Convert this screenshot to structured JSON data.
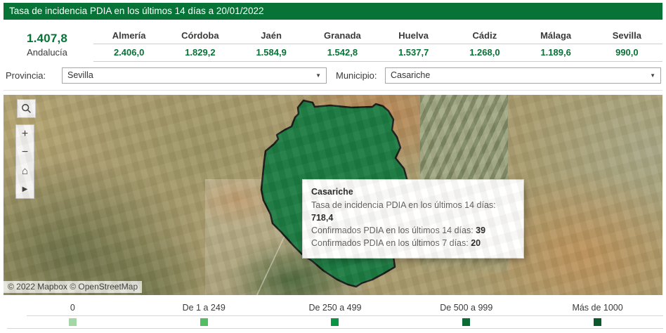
{
  "title_bar": {
    "text": "Tasa de incidencia PDIA en los últimos 14 días a 20/01/2022"
  },
  "summary": {
    "value": "1.407,8",
    "region": "Andalucía"
  },
  "province_table": {
    "provinces": [
      {
        "name": "Almería",
        "value": "2.406,0"
      },
      {
        "name": "Córdoba",
        "value": "1.829,2"
      },
      {
        "name": "Jaén",
        "value": "1.584,9"
      },
      {
        "name": "Granada",
        "value": "1.542,8"
      },
      {
        "name": "Huelva",
        "value": "1.537,7"
      },
      {
        "name": "Cádiz",
        "value": "1.268,0"
      },
      {
        "name": "Málaga",
        "value": "1.189,6"
      },
      {
        "name": "Sevilla",
        "value": "990,0"
      }
    ]
  },
  "filters": {
    "provincia_label": "Provincia:",
    "provincia_value": "Sevilla",
    "municipio_label": "Municipio:",
    "municipio_value": "Casariche"
  },
  "map": {
    "tooltip": {
      "title": "Casariche",
      "rows": [
        {
          "label": "Tasa de incidencia PDIA en los últimos 14 días:",
          "value": "718,4"
        },
        {
          "label": "Confirmados PDIA en los últimos 14 días:",
          "value": "39"
        },
        {
          "label": "Confirmados PDIA en los últimos 7 días:",
          "value": "20"
        }
      ]
    },
    "attribution": "© 2022 Mapbox © OpenStreetMap",
    "selected_municipality": "Casariche"
  },
  "icons": {
    "zoom_in": "+",
    "zoom_out": "−",
    "home": "⌂",
    "pan": "▶",
    "caret": "▼"
  },
  "legend": {
    "items": [
      {
        "label": "0",
        "color": "#a5d6a5"
      },
      {
        "label": "De 1 a 249",
        "color": "#52bd63"
      },
      {
        "label": "De 250 a 499",
        "color": "#0b9444"
      },
      {
        "label": "De 500 a 999",
        "color": "#0b6b35"
      },
      {
        "label": "Más de 1000",
        "color": "#0a592c"
      }
    ]
  },
  "colors": {
    "brand_green": "#077336",
    "polygon_fill": "#16793f"
  }
}
